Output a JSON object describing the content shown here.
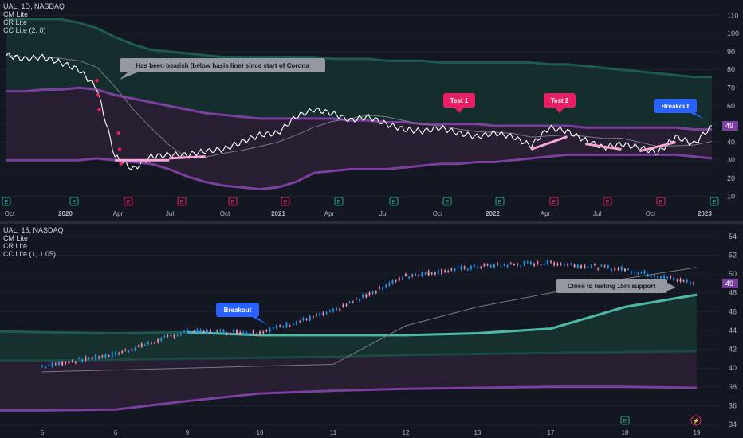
{
  "panes": [
    {
      "id": "top",
      "legend": [
        "UAL, 1D, NASDAQ",
        "CM Lite",
        "CR Lite",
        "CC Lite (2, 0)"
      ],
      "y_ticks": [
        10,
        20,
        30,
        40,
        50,
        60,
        70,
        80,
        90,
        100,
        110
      ],
      "x_ticks": [
        "Oct",
        "2020",
        "Apr",
        "Jul",
        "Oct",
        "2021",
        "Apr",
        "Jul",
        "Oct",
        "2022",
        "Apr",
        "Jul",
        "Oct",
        "2023"
      ],
      "price_label": "49",
      "annotations": [
        {
          "text": "Has been bearish (below basis line) since start of Corona",
          "style": "gray"
        },
        {
          "text": "Test 1",
          "style": "pink"
        },
        {
          "text": "Test 2",
          "style": "pink"
        },
        {
          "text": "Breakout",
          "style": "blue"
        }
      ],
      "earnings_markers": [
        "E",
        "E",
        "E",
        "E",
        "E",
        "E",
        "E",
        "E",
        "E",
        "E",
        "E",
        "E",
        "E",
        "E"
      ]
    },
    {
      "id": "bottom",
      "legend": [
        "UAL, 15, NASDAQ",
        "CM Lite",
        "CR Lite",
        "CC Lite (1, 1.05)"
      ],
      "y_ticks": [
        34,
        36,
        38,
        40,
        42,
        44,
        46,
        48,
        50,
        52,
        54
      ],
      "x_ticks": [
        "5",
        "6",
        "9",
        "10",
        "11",
        "12",
        "13",
        "17",
        "18",
        "19"
      ],
      "price_label": "49",
      "annotations": [
        {
          "text": "Breakout",
          "style": "blue"
        },
        {
          "text": "Close to testing 15m support",
          "style": "gray"
        }
      ],
      "earnings_markers": [
        "E",
        "⚡"
      ]
    }
  ],
  "colors": {
    "background": "#131722",
    "price_line": "#ffffff",
    "basis_purple": "#7b3f9e",
    "band_green": "#1e5a52",
    "support_pink": "#f8a5d8",
    "support_teal": "#4fb9a8",
    "annotation_blue": "#2962ff",
    "annotation_pink": "#e91e63",
    "annotation_gray": "#9598a1",
    "candle_up": "#2196f3",
    "candle_down": "#f48fb1"
  },
  "chart_data": [
    {
      "type": "line",
      "title": "UAL, 1D, NASDAQ",
      "ylim": [
        5,
        115
      ],
      "x": [
        "2019-10",
        "2019-11",
        "2019-12",
        "2020-01",
        "2020-02",
        "2020-03",
        "2020-04",
        "2020-05",
        "2020-06",
        "2020-07",
        "2020-08",
        "2020-09",
        "2020-10",
        "2020-11",
        "2020-12",
        "2021-01",
        "2021-02",
        "2021-03",
        "2021-04",
        "2021-05",
        "2021-06",
        "2021-07",
        "2021-08",
        "2021-09",
        "2021-10",
        "2021-11",
        "2021-12",
        "2022-01",
        "2022-02",
        "2022-03",
        "2022-04",
        "2022-05",
        "2022-06",
        "2022-07",
        "2022-08",
        "2022-09",
        "2022-10",
        "2022-11",
        "2022-12",
        "2023-01"
      ],
      "series": [
        {
          "values": [
            88,
            86,
            87,
            84,
            80,
            70,
            32,
            25,
            32,
            33,
            33,
            35,
            36,
            40,
            44,
            45,
            54,
            58,
            56,
            52,
            54,
            50,
            47,
            46,
            48,
            45,
            43,
            45,
            43,
            38,
            48,
            46,
            41,
            37,
            39,
            37,
            34,
            43,
            39,
            49
          ]
        },
        {
          "values": [
            68,
            68,
            69,
            69,
            70,
            69,
            66,
            64,
            62,
            60,
            58,
            56,
            55,
            54,
            53,
            53,
            53,
            53,
            53,
            52,
            52,
            51,
            51,
            50,
            50,
            50,
            50,
            49,
            49,
            49,
            49,
            49,
            48,
            48,
            48,
            48,
            48,
            48,
            47,
            47
          ]
        },
        {
          "values": [
            108,
            108,
            108,
            108,
            106,
            103,
            98,
            94,
            91,
            90,
            89,
            88,
            87,
            87,
            87,
            87,
            87,
            87,
            86,
            86,
            86,
            85,
            85,
            85,
            84,
            84,
            84,
            84,
            84,
            84,
            83,
            83,
            82,
            81,
            80,
            79,
            78,
            77,
            76,
            76
          ]
        },
        {
          "values": [
            30,
            30,
            30,
            30,
            30,
            31,
            30,
            29,
            28,
            25,
            21,
            18,
            16,
            15,
            14,
            15,
            18,
            23,
            24,
            25,
            25,
            25,
            26,
            27,
            28,
            28,
            29,
            29,
            30,
            31,
            32,
            33,
            33,
            33,
            33,
            33,
            33,
            33,
            32,
            31
          ]
        }
      ]
    },
    {
      "type": "line",
      "title": "UAL, 15, NASDAQ",
      "ylim": [
        33.5,
        55
      ],
      "x": [
        "5",
        "6",
        "9",
        "10",
        "11",
        "12",
        "13",
        "17",
        "18",
        "19"
      ],
      "series": [
        {
          "values": [
            40.2,
            41.5,
            43.9,
            43.8,
            46.0,
            49.8,
            50.8,
            51.2,
            50.5,
            49.0
          ]
        },
        {
          "values": [
            39.6,
            39.8,
            40.0,
            40.2,
            40.4,
            44.5,
            46.5,
            48.0,
            49.5,
            50.7
          ]
        },
        {
          "values": [
            43.8,
            43.7,
            43.8,
            43.5,
            43.5,
            43.5,
            43.7,
            44.2,
            46.5,
            47.8
          ]
        },
        {
          "values": [
            40.8,
            40.9,
            41.0,
            41.1,
            41.2,
            41.4,
            41.5,
            41.6,
            41.7,
            41.8
          ]
        },
        {
          "values": [
            35.5,
            35.6,
            36.5,
            37.3,
            37.6,
            37.8,
            37.9,
            38.0,
            38.0,
            37.9
          ]
        }
      ]
    }
  ]
}
